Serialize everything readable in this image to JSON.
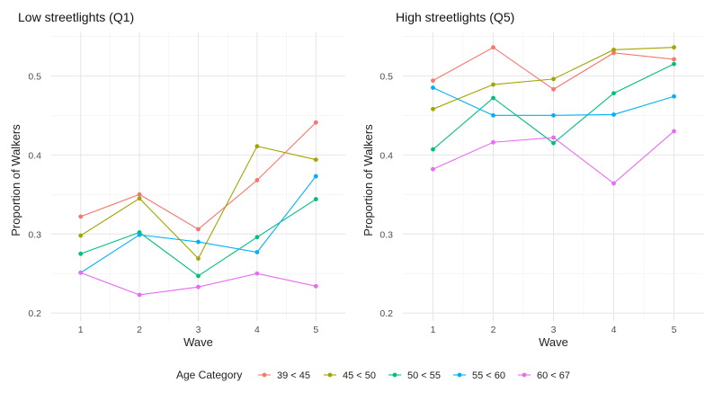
{
  "legend": {
    "title": "Age Category",
    "position": "bottom"
  },
  "chart_data": [
    {
      "type": "line",
      "title": "Low streetlights (Q1)",
      "xlabel": "Wave",
      "ylabel": "Proportion of Walkers",
      "x": [
        1,
        2,
        3,
        4,
        5
      ],
      "x_tick_labels": [
        "1",
        "2",
        "3",
        "4",
        "5"
      ],
      "y_ticks": [
        0.2,
        0.3,
        0.4,
        0.5
      ],
      "y_tick_labels": [
        "0.2",
        "0.3",
        "0.4",
        "0.5"
      ],
      "ylim": [
        0.19,
        0.555
      ],
      "xlim": [
        0.5,
        5.5
      ],
      "grid": true,
      "series": [
        {
          "name": "39 < 45",
          "color": "#F8766D",
          "values": [
            0.322,
            0.35,
            0.306,
            0.368,
            0.441
          ]
        },
        {
          "name": "45 < 50",
          "color": "#A3A500",
          "values": [
            0.298,
            0.345,
            0.269,
            0.411,
            0.394
          ]
        },
        {
          "name": "50 < 55",
          "color": "#00BF7D",
          "values": [
            0.275,
            0.302,
            0.247,
            0.296,
            0.344
          ]
        },
        {
          "name": "55 < 60",
          "color": "#00B0F6",
          "values": [
            0.251,
            0.299,
            0.29,
            0.277,
            0.373
          ]
        },
        {
          "name": "60 < 67",
          "color": "#E76BF3",
          "values": [
            0.251,
            0.223,
            0.233,
            0.25,
            0.234
          ]
        }
      ]
    },
    {
      "type": "line",
      "title": "High streetlights (Q5)",
      "xlabel": "Wave",
      "ylabel": "Proportion of Walkers",
      "x": [
        1,
        2,
        3,
        4,
        5
      ],
      "x_tick_labels": [
        "1",
        "2",
        "3",
        "4",
        "5"
      ],
      "y_ticks": [
        0.2,
        0.3,
        0.4,
        0.5
      ],
      "y_tick_labels": [
        "0.2",
        "0.3",
        "0.4",
        "0.5"
      ],
      "ylim": [
        0.19,
        0.555
      ],
      "xlim": [
        0.5,
        5.5
      ],
      "grid": true,
      "series": [
        {
          "name": "39 < 45",
          "color": "#F8766D",
          "values": [
            0.494,
            0.536,
            0.483,
            0.529,
            0.521
          ]
        },
        {
          "name": "45 < 50",
          "color": "#A3A500",
          "values": [
            0.458,
            0.489,
            0.496,
            0.533,
            0.536
          ]
        },
        {
          "name": "50 < 55",
          "color": "#00BF7D",
          "values": [
            0.407,
            0.472,
            0.415,
            0.478,
            0.515
          ]
        },
        {
          "name": "55 < 60",
          "color": "#00B0F6",
          "values": [
            0.485,
            0.45,
            0.45,
            0.451,
            0.474
          ]
        },
        {
          "name": "60 < 67",
          "color": "#E76BF3",
          "values": [
            0.382,
            0.416,
            0.422,
            0.364,
            0.43
          ]
        }
      ]
    }
  ]
}
